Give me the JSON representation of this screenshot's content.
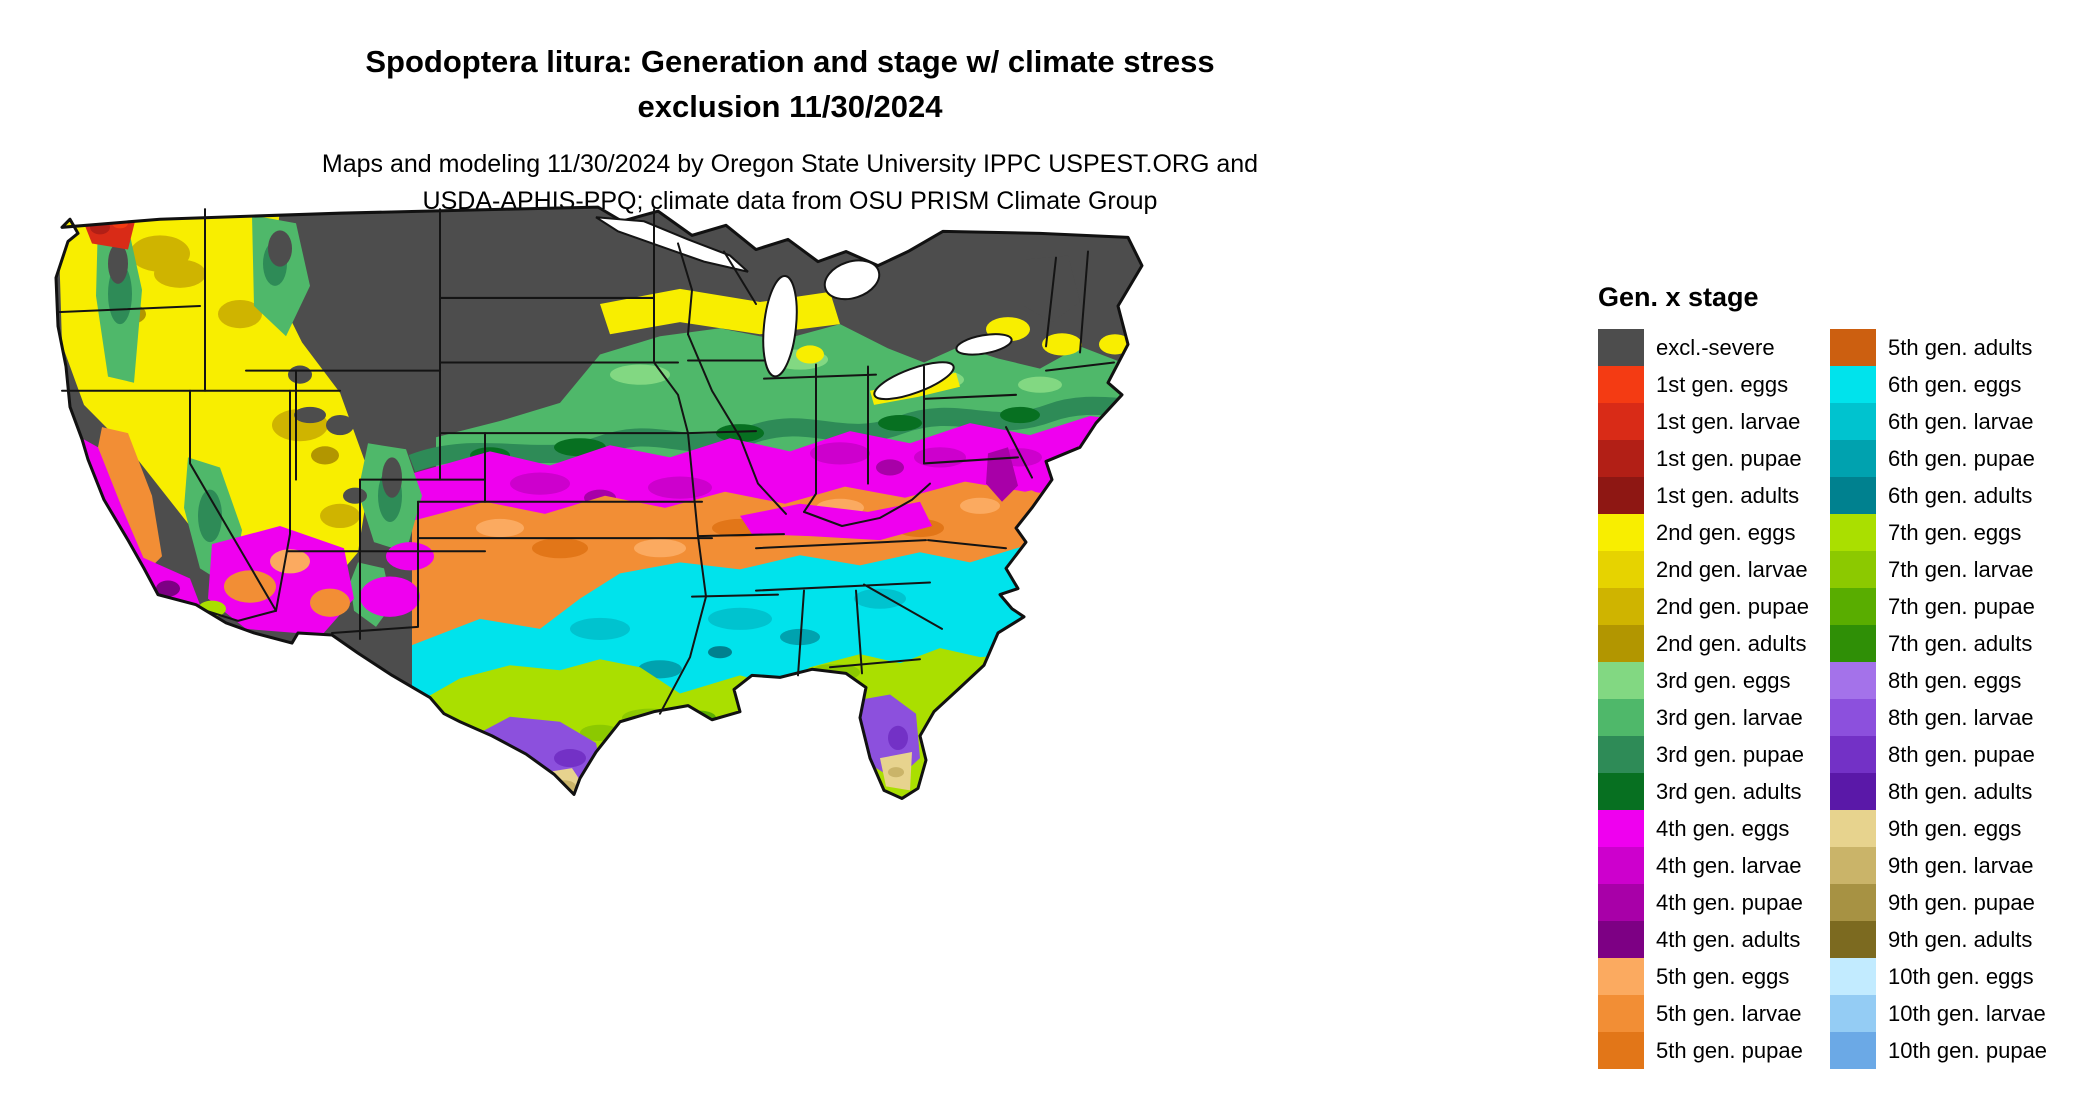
{
  "header": {
    "title_line1": "Spodoptera litura: Generation and stage w/ climate stress",
    "title_line2": "exclusion 11/30/2024",
    "subtitle_line1": "Maps and modeling 11/30/2024 by Oregon State University IPPC USPEST.ORG and",
    "subtitle_line2": "USDA-APHIS-PPQ; climate data from OSU PRISM Climate Group"
  },
  "legend": {
    "title": "Gen. x stage",
    "columns": [
      {
        "entries": [
          {
            "key": "excl",
            "label": "excl.-severe",
            "color": "#4d4d4d"
          },
          {
            "key": "g1_eggs",
            "label": "1st gen. eggs",
            "color": "#f43b13"
          },
          {
            "key": "g1_larvae",
            "label": "1st gen. larvae",
            "color": "#d92b17"
          },
          {
            "key": "g1_pupae",
            "label": "1st gen. pupae",
            "color": "#b21f16"
          },
          {
            "key": "g1_adults",
            "label": "1st gen. adults",
            "color": "#8e1713"
          },
          {
            "key": "g2_eggs",
            "label": "2nd gen. eggs",
            "color": "#f8ee00"
          },
          {
            "key": "g2_larvae",
            "label": "2nd gen. larvae",
            "color": "#e6d300"
          },
          {
            "key": "g2_pupae",
            "label": "2nd gen. pupae",
            "color": "#cfb400"
          },
          {
            "key": "g2_adults",
            "label": "2nd gen. adults",
            "color": "#b29600"
          },
          {
            "key": "g3_eggs",
            "label": "3rd gen. eggs",
            "color": "#82d882"
          },
          {
            "key": "g3_larvae",
            "label": "3rd gen. larvae",
            "color": "#4fb86a"
          },
          {
            "key": "g3_pupae",
            "label": "3rd gen. pupae",
            "color": "#2e8b57"
          },
          {
            "key": "g3_adults",
            "label": "3rd gen. adults",
            "color": "#077021"
          },
          {
            "key": "g4_eggs",
            "label": "4th gen. eggs",
            "color": "#ef00ef"
          },
          {
            "key": "g4_larvae",
            "label": "4th gen. larvae",
            "color": "#cd00cd"
          },
          {
            "key": "g4_pupae",
            "label": "4th gen. pupae",
            "color": "#a800a8"
          },
          {
            "key": "g4_adults",
            "label": "4th gen. adults",
            "color": "#7d0084"
          },
          {
            "key": "g5_eggs",
            "label": "5th gen. eggs",
            "color": "#fbaa60"
          },
          {
            "key": "g5_larvae",
            "label": "5th gen. larvae",
            "color": "#f28e35"
          },
          {
            "key": "g5_pupae",
            "label": "5th gen. pupae",
            "color": "#e27618"
          }
        ]
      },
      {
        "entries": [
          {
            "key": "g5_adults",
            "label": "5th gen. adults",
            "color": "#cc5f10"
          },
          {
            "key": "g6_eggs",
            "label": "6th gen. eggs",
            "color": "#00e3ec"
          },
          {
            "key": "g6_larvae",
            "label": "6th gen. larvae",
            "color": "#00c3cf"
          },
          {
            "key": "g6_pupae",
            "label": "6th gen. pupae",
            "color": "#00a2af"
          },
          {
            "key": "g6_adults",
            "label": "6th gen. adults",
            "color": "#00818f"
          },
          {
            "key": "g7_eggs",
            "label": "7th gen. eggs",
            "color": "#aadf00"
          },
          {
            "key": "g7_larvae",
            "label": "7th gen. larvae",
            "color": "#8cc900"
          },
          {
            "key": "g7_pupae",
            "label": "7th gen. pupae",
            "color": "#59ad00"
          },
          {
            "key": "g7_adults",
            "label": "7th gen. adults",
            "color": "#2f8f06"
          },
          {
            "key": "g8_eggs",
            "label": "8th gen. eggs",
            "color": "#a472ea"
          },
          {
            "key": "g8_larvae",
            "label": "8th gen. larvae",
            "color": "#8c50dd"
          },
          {
            "key": "g8_pupae",
            "label": "8th gen. pupae",
            "color": "#7331c6"
          },
          {
            "key": "g8_adults",
            "label": "8th gen. adults",
            "color": "#5a18a8"
          },
          {
            "key": "g9_eggs",
            "label": "9th gen. eggs",
            "color": "#e7d38e"
          },
          {
            "key": "g9_larvae",
            "label": "9th gen. larvae",
            "color": "#cab469"
          },
          {
            "key": "g9_pupae",
            "label": "9th gen. pupae",
            "color": "#a79243"
          },
          {
            "key": "g9_adults",
            "label": "9th gen. adults",
            "color": "#7c6a20"
          },
          {
            "key": "g10_eggs",
            "label": "10th gen. eggs",
            "color": "#c2ebff"
          },
          {
            "key": "g10_larvae",
            "label": "10th gen. larvae",
            "color": "#94ccf4"
          },
          {
            "key": "g10_pupae",
            "label": "10th gen. pupae",
            "color": "#6ba9e6"
          }
        ]
      }
    ]
  }
}
